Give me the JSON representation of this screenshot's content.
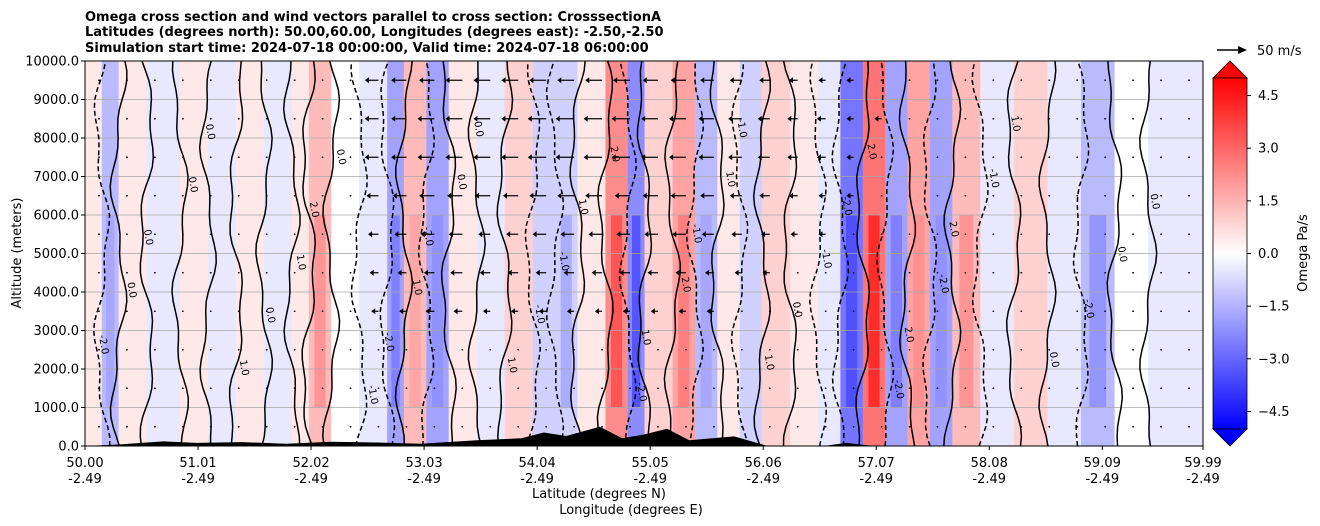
{
  "chart_data": {
    "type": "heatmap",
    "title_lines": [
      "Omega cross section and wind vectors parallel to cross section: CrosssectionA",
      "Latitudes (degrees north): 50.00,60.00, Longitudes (degrees east): -2.50,-2.50",
      "Simulation start time: 2024-07-18 00:00:00, Valid time: 2024-07-18 06:00:00"
    ],
    "ylabel": "Altitude (meters)",
    "xlabel_lines": [
      "Latitude (degrees N)",
      "Longitude (degrees E)"
    ],
    "ylim": [
      0,
      10000
    ],
    "y_ticks": [
      "0.0",
      "1000.0",
      "2000.0",
      "3000.0",
      "4000.0",
      "5000.0",
      "6000.0",
      "7000.0",
      "8000.0",
      "9000.0",
      "10000.0"
    ],
    "x_ticks_lat": [
      "50.00",
      "51.01",
      "52.02",
      "53.03",
      "54.04",
      "55.05",
      "56.06",
      "57.07",
      "58.08",
      "59.09",
      "59.99"
    ],
    "x_ticks_lon": [
      "-2.49",
      "-2.49",
      "-2.49",
      "-2.49",
      "-2.49",
      "-2.49",
      "-2.49",
      "-2.49",
      "-2.49",
      "-2.49",
      "-2.49"
    ],
    "grid": "horizontal",
    "colorbar": {
      "label": "Omega Pa/s",
      "ticks": [
        "4.5",
        "3.0",
        "1.5",
        "0.0",
        "−1.5",
        "−3.0",
        "−4.5"
      ],
      "range": [
        -5.0,
        5.0
      ],
      "extend": "both",
      "colormap": "bwr",
      "color_low": "#0000ff",
      "color_mid": "#ffffff",
      "color_high": "#ff0000"
    },
    "contour_labels": [
      "1.0",
      "0.0",
      "-1.0",
      "2.0",
      "-2.0"
    ],
    "quiver_key": "50 m/s",
    "terrain_color": "#000000",
    "zones": [
      {
        "lat": 50.0,
        "omega": 0.4
      },
      {
        "lat": 50.15,
        "omega": -1.5
      },
      {
        "lat": 50.3,
        "omega": 0.3
      },
      {
        "lat": 50.55,
        "omega": -0.4
      },
      {
        "lat": 50.85,
        "omega": 0.3
      },
      {
        "lat": 51.1,
        "omega": -0.3
      },
      {
        "lat": 51.35,
        "omega": 0.5
      },
      {
        "lat": 51.6,
        "omega": -0.3
      },
      {
        "lat": 51.85,
        "omega": 0.5
      },
      {
        "lat": 52.0,
        "omega": 1.6
      },
      {
        "lat": 52.2,
        "omega": 0.2
      },
      {
        "lat": 52.45,
        "omega": -0.6
      },
      {
        "lat": 52.7,
        "omega": -2.0
      },
      {
        "lat": 52.85,
        "omega": 1.3
      },
      {
        "lat": 53.05,
        "omega": -1.8
      },
      {
        "lat": 53.25,
        "omega": 0.4
      },
      {
        "lat": 53.5,
        "omega": -0.3
      },
      {
        "lat": 53.75,
        "omega": 1.0
      },
      {
        "lat": 54.0,
        "omega": -0.9
      },
      {
        "lat": 54.2,
        "omega": -1.2
      },
      {
        "lat": 54.4,
        "omega": 0.7
      },
      {
        "lat": 54.65,
        "omega": 2.6
      },
      {
        "lat": 54.85,
        "omega": -2.6
      },
      {
        "lat": 55.0,
        "omega": 0.9
      },
      {
        "lat": 55.25,
        "omega": 1.9
      },
      {
        "lat": 55.45,
        "omega": -1.3
      },
      {
        "lat": 55.65,
        "omega": 0.6
      },
      {
        "lat": 55.85,
        "omega": -0.8
      },
      {
        "lat": 56.05,
        "omega": 0.8
      },
      {
        "lat": 56.3,
        "omega": 0.3
      },
      {
        "lat": 56.55,
        "omega": -0.6
      },
      {
        "lat": 56.75,
        "omega": -2.8
      },
      {
        "lat": 56.95,
        "omega": 3.2
      },
      {
        "lat": 57.15,
        "omega": -2.0
      },
      {
        "lat": 57.35,
        "omega": 1.8
      },
      {
        "lat": 57.55,
        "omega": -1.8
      },
      {
        "lat": 57.75,
        "omega": 1.6
      },
      {
        "lat": 58.0,
        "omega": -0.6
      },
      {
        "lat": 58.3,
        "omega": 0.9
      },
      {
        "lat": 58.6,
        "omega": -0.4
      },
      {
        "lat": 58.9,
        "omega": -1.7
      },
      {
        "lat": 59.2,
        "omega": -0.2
      },
      {
        "lat": 59.5,
        "omega": -0.4
      },
      {
        "lat": 59.99,
        "omega": -0.15
      }
    ],
    "terrain": [
      {
        "lat": 50.0,
        "alt": 0
      },
      {
        "lat": 50.3,
        "alt": 40
      },
      {
        "lat": 50.7,
        "alt": 120
      },
      {
        "lat": 51.0,
        "alt": 80
      },
      {
        "lat": 51.4,
        "alt": 100
      },
      {
        "lat": 51.8,
        "alt": 60
      },
      {
        "lat": 52.2,
        "alt": 110
      },
      {
        "lat": 52.6,
        "alt": 90
      },
      {
        "lat": 53.0,
        "alt": 60
      },
      {
        "lat": 53.5,
        "alt": 150
      },
      {
        "lat": 53.9,
        "alt": 200
      },
      {
        "lat": 54.1,
        "alt": 350
      },
      {
        "lat": 54.3,
        "alt": 260
      },
      {
        "lat": 54.6,
        "alt": 500
      },
      {
        "lat": 54.8,
        "alt": 200
      },
      {
        "lat": 55.0,
        "alt": 300
      },
      {
        "lat": 55.2,
        "alt": 450
      },
      {
        "lat": 55.4,
        "alt": 150
      },
      {
        "lat": 55.8,
        "alt": 250
      },
      {
        "lat": 56.1,
        "alt": 0
      },
      {
        "lat": 56.6,
        "alt": 0
      },
      {
        "lat": 56.8,
        "alt": 80
      },
      {
        "lat": 57.05,
        "alt": 0
      },
      {
        "lat": 59.99,
        "alt": 0
      }
    ],
    "wind_rows": [
      {
        "alt": 500,
        "u": [
          0,
          0,
          0,
          0,
          0,
          0,
          0,
          0,
          0,
          0,
          0,
          0,
          0,
          0,
          0,
          0,
          0,
          0,
          0,
          0,
          0,
          0,
          0,
          0,
          0,
          0,
          0,
          0,
          0,
          0,
          0,
          0,
          0,
          0,
          0,
          0,
          0,
          0,
          0,
          0
        ]
      },
      {
        "alt": 1500,
        "u": [
          0,
          0,
          0,
          0,
          0,
          0,
          0,
          0,
          0,
          0,
          0,
          0,
          0,
          0,
          0,
          0,
          0,
          0,
          0,
          0,
          0,
          0,
          0,
          0,
          0,
          0,
          0,
          0,
          0,
          0,
          0,
          0,
          0,
          0,
          0,
          0,
          0,
          0,
          0,
          0
        ]
      },
      {
        "alt": 2500,
        "u": [
          0,
          0,
          0,
          0,
          0,
          0,
          0,
          0,
          0,
          0,
          0,
          0,
          0,
          0,
          0,
          0,
          0,
          0,
          0,
          0,
          0,
          0,
          0,
          0,
          0,
          0,
          0,
          0,
          0,
          0,
          0,
          0,
          0,
          0,
          0,
          0,
          0,
          0,
          0,
          0
        ]
      },
      {
        "alt": 3500,
        "u": [
          0,
          0,
          0,
          0,
          0,
          0,
          0,
          0,
          0,
          0,
          -2,
          -2,
          -3,
          -3,
          -2,
          -2,
          -2,
          -2,
          -2,
          -2,
          -2,
          -2,
          -2,
          0,
          0,
          0,
          0,
          0,
          0,
          0,
          0,
          0,
          0,
          0,
          0,
          0,
          0,
          0,
          0,
          0
        ]
      },
      {
        "alt": 4500,
        "u": [
          0,
          0,
          0,
          0,
          0,
          0,
          0,
          0,
          0,
          0,
          -3,
          -3,
          -4,
          -5,
          -4,
          -4,
          -4,
          -4,
          -4,
          -4,
          -4,
          -4,
          -3,
          -2,
          -2,
          0,
          0,
          0,
          0,
          0,
          0,
          0,
          0,
          0,
          0,
          0,
          0,
          0,
          0,
          0
        ]
      },
      {
        "alt": 5500,
        "u": [
          0,
          0,
          0,
          0,
          0,
          0,
          0,
          0,
          0,
          0,
          -4,
          -5,
          -6,
          -6,
          -5,
          -5,
          -6,
          -6,
          -6,
          -6,
          -6,
          -6,
          -5,
          -4,
          -3,
          -2,
          -2,
          0,
          0,
          0,
          0,
          0,
          0,
          0,
          0,
          0,
          0,
          0,
          0,
          0
        ]
      },
      {
        "alt": 6500,
        "u": [
          0,
          0,
          0,
          0,
          0,
          0,
          0,
          0,
          0,
          0,
          -5,
          -6,
          -7,
          -7,
          -7,
          -7,
          -8,
          -8,
          -8,
          -7,
          -7,
          -7,
          -6,
          -5,
          -4,
          -3,
          -2,
          -2,
          0,
          0,
          0,
          0,
          0,
          0,
          0,
          0,
          0,
          0,
          0,
          0
        ]
      },
      {
        "alt": 7500,
        "u": [
          0,
          0,
          0,
          0,
          0,
          0,
          0,
          0,
          0,
          0,
          -6,
          -7,
          -8,
          -8,
          -8,
          -8,
          -9,
          -9,
          -9,
          -9,
          -8,
          -8,
          -7,
          -6,
          -5,
          -4,
          -3,
          -2,
          0,
          0,
          0,
          0,
          0,
          0,
          0,
          0,
          0,
          0,
          0,
          0
        ]
      },
      {
        "alt": 8500,
        "u": [
          0,
          0,
          0,
          0,
          0,
          0,
          0,
          0,
          0,
          0,
          -6,
          -7,
          -8,
          -8,
          -8,
          -8,
          -9,
          -9,
          -9,
          -9,
          -8,
          -8,
          -7,
          -6,
          -5,
          -4,
          -3,
          -2,
          -2,
          0,
          0,
          0,
          0,
          0,
          0,
          0,
          0,
          0,
          0,
          0
        ]
      },
      {
        "alt": 9500,
        "u": [
          0,
          0,
          0,
          0,
          0,
          0,
          0,
          0,
          0,
          0,
          -6,
          -7,
          -7,
          -8,
          -8,
          -8,
          -8,
          -8,
          -8,
          -8,
          -7,
          -7,
          -6,
          -5,
          -4,
          -3,
          -2,
          -2,
          0,
          0,
          0,
          0,
          0,
          0,
          0,
          0,
          0,
          0,
          0,
          0
        ]
      }
    ]
  }
}
